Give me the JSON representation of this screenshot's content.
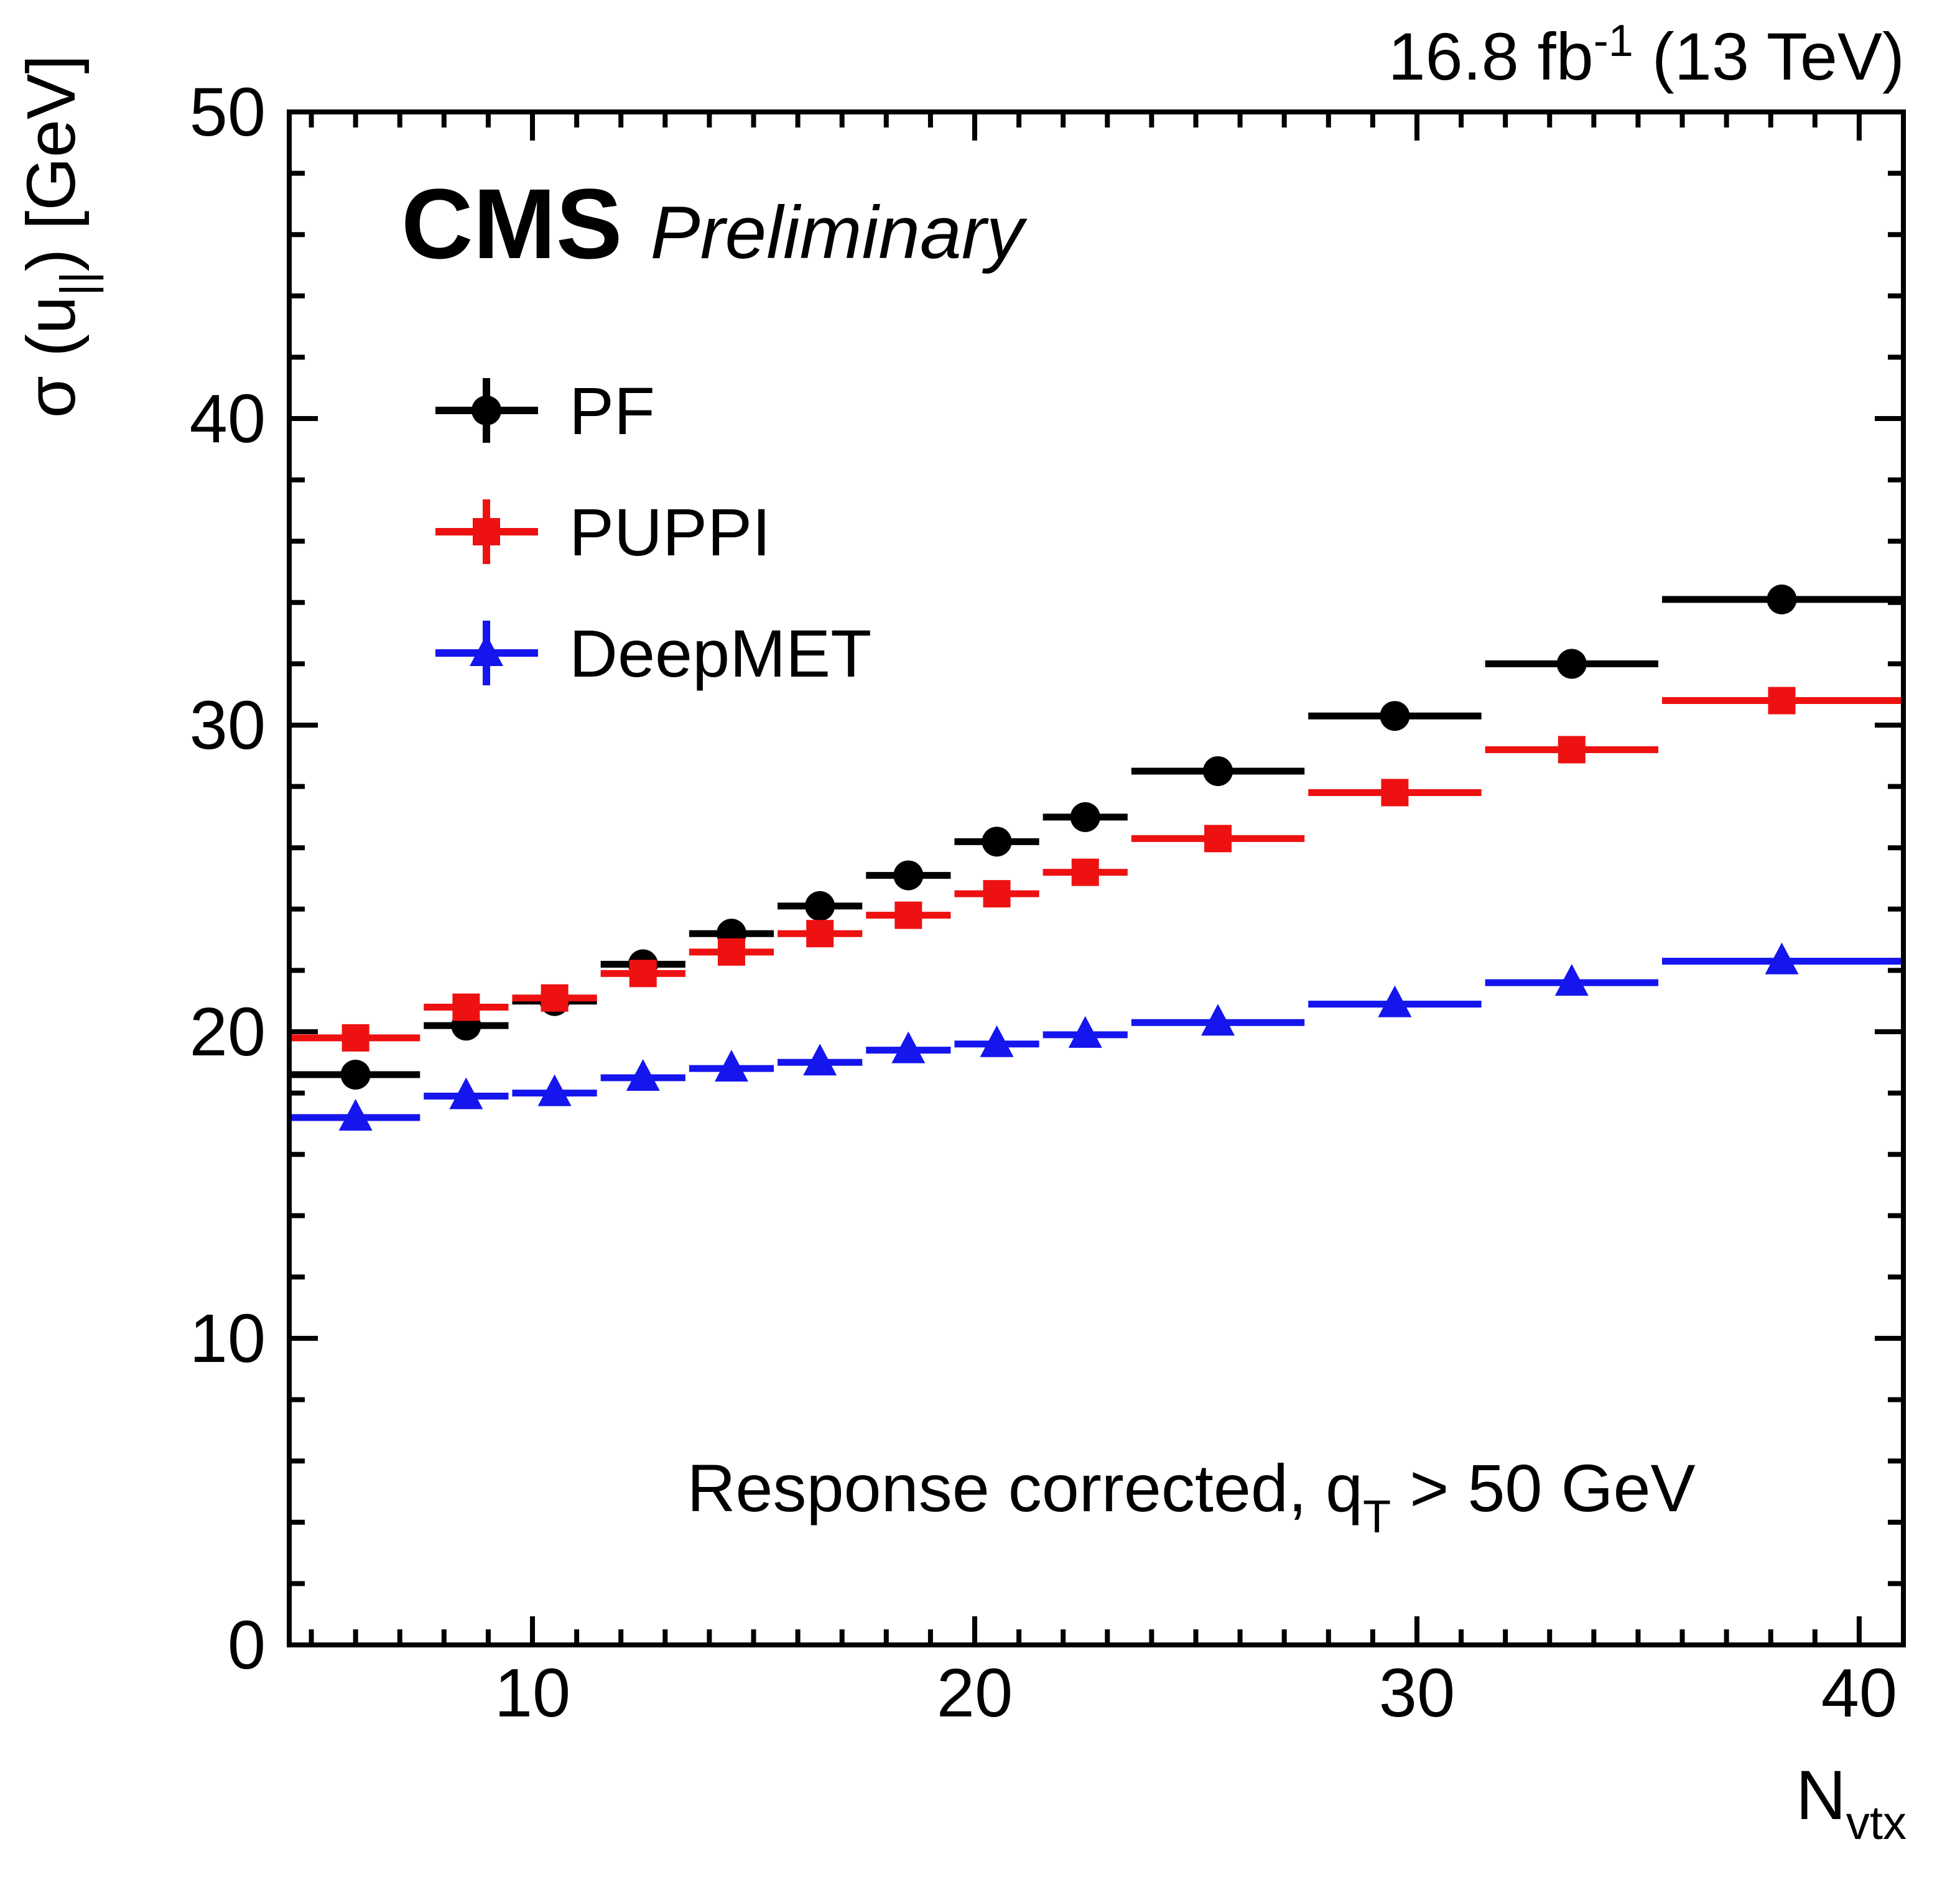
{
  "header": {
    "lumi_value": "16.8 fb",
    "lumi_sup": "-1",
    "lumi_energy": " (13 TeV)"
  },
  "branding": {
    "experiment": "CMS",
    "label": "Preliminary"
  },
  "annotation": {
    "pre": "Response corrected, q",
    "sub": "T",
    "post": " > 50 GeV"
  },
  "axes": {
    "y_title_pre": "σ (u",
    "y_title_sub": "||",
    "y_title_post": ") [GeV]",
    "x_title_pre": "N",
    "x_title_sub": "vtx"
  },
  "chart_data": {
    "type": "scatter",
    "title": "",
    "xlabel": "N_vtx",
    "ylabel": "sigma(u_parallel) [GeV]",
    "xlim": [
      4.5,
      41
    ],
    "ylim": [
      0,
      50
    ],
    "xticks": [
      10,
      20,
      30,
      40
    ],
    "yticks": [
      0,
      10,
      20,
      30,
      40,
      50
    ],
    "x_minor_step": 1,
    "y_minor_step": 2,
    "grid": false,
    "legend_position": "upper-left-inside",
    "bin_edges": [
      4.5,
      7.5,
      9.5,
      11.5,
      13.5,
      15.5,
      17.5,
      19.5,
      21.5,
      23.5,
      27.5,
      31.5,
      35.5,
      41
    ],
    "series": [
      {
        "name": "PF",
        "color": "#000000",
        "marker": "circle",
        "yerr": 0.25,
        "values": [
          18.6,
          20.2,
          21.0,
          22.2,
          23.2,
          24.1,
          25.1,
          26.2,
          27.0,
          28.5,
          30.3,
          32.0,
          34.1
        ]
      },
      {
        "name": "PUPPI",
        "color": "#ee1111",
        "marker": "square",
        "yerr": 0.3,
        "values": [
          19.8,
          20.8,
          21.1,
          21.9,
          22.6,
          23.2,
          23.8,
          24.5,
          25.2,
          26.3,
          27.8,
          29.2,
          30.8
        ]
      },
      {
        "name": "DeepMET",
        "color": "#1515ee",
        "marker": "triangle",
        "yerr": 0.25,
        "values": [
          17.2,
          17.9,
          18.0,
          18.5,
          18.8,
          19.0,
          19.4,
          19.6,
          19.9,
          20.3,
          20.9,
          21.6,
          22.3
        ]
      }
    ]
  }
}
